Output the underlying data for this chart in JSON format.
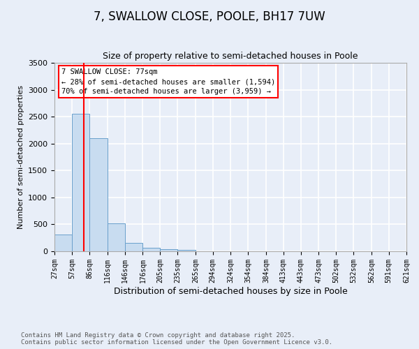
{
  "title": "7, SWALLOW CLOSE, POOLE, BH17 7UW",
  "subtitle": "Size of property relative to semi-detached houses in Poole",
  "xlabel": "Distribution of semi-detached houses by size in Poole",
  "ylabel": "Number of semi-detached properties",
  "bin_edges": [
    27,
    57,
    86,
    116,
    146,
    176,
    205,
    235,
    265,
    294,
    324,
    354,
    384,
    413,
    443,
    473,
    502,
    532,
    562,
    591,
    621
  ],
  "bin_counts": [
    305,
    2550,
    2100,
    520,
    150,
    70,
    40,
    30,
    0,
    0,
    0,
    0,
    0,
    0,
    0,
    0,
    0,
    0,
    0,
    0
  ],
  "bar_color": "#c8dcf0",
  "bar_edgecolor": "#6aa0cc",
  "property_line_x": 77,
  "property_line_color": "red",
  "ylim": [
    0,
    3500
  ],
  "yticks": [
    0,
    500,
    1000,
    1500,
    2000,
    2500,
    3000,
    3500
  ],
  "annotation_title": "7 SWALLOW CLOSE: 77sqm",
  "annotation_line1": "← 28% of semi-detached houses are smaller (1,594)",
  "annotation_line2": "70% of semi-detached houses are larger (3,959) →",
  "annotation_box_color": "red",
  "footer_line1": "Contains HM Land Registry data © Crown copyright and database right 2025.",
  "footer_line2": "Contains public sector information licensed under the Open Government Licence v3.0.",
  "background_color": "#e8eef8",
  "plot_background": "#e8eef8",
  "grid_color": "white",
  "tick_labels": [
    "27sqm",
    "57sqm",
    "86sqm",
    "116sqm",
    "146sqm",
    "176sqm",
    "205sqm",
    "235sqm",
    "265sqm",
    "294sqm",
    "324sqm",
    "354sqm",
    "384sqm",
    "413sqm",
    "443sqm",
    "473sqm",
    "502sqm",
    "532sqm",
    "562sqm",
    "591sqm",
    "621sqm"
  ]
}
